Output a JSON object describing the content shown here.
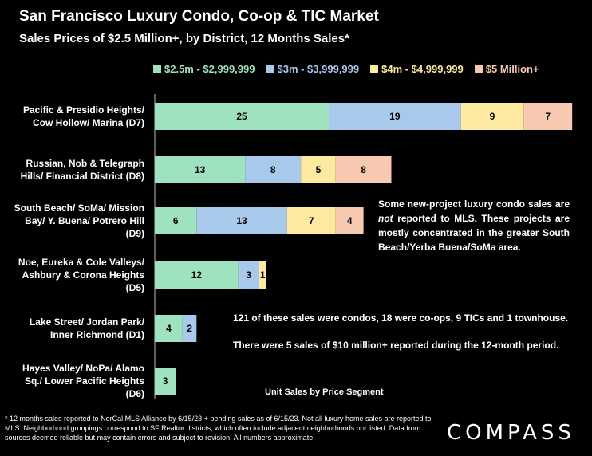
{
  "title": "San Francisco Luxury Condo, Co-op & TIC Market",
  "subtitle": "Sales Prices of $2.5 Million+, by District, 12 Months Sales*",
  "colors": {
    "seg1": "#9fe2bf",
    "seg2": "#a8c8ec",
    "seg3": "#fde9a0",
    "seg4": "#f7c9b0",
    "background": "#000000"
  },
  "chart_data": {
    "type": "bar",
    "orientation": "horizontal",
    "stacked": true,
    "xlabel": "Unit Sales by Price Segment",
    "legend_position": "top",
    "grid": false,
    "categories": [
      [
        "Pacific & Presidio Heights/",
        "Cow Hollow/ Marina (D7)"
      ],
      [
        "Russian, Nob & Telegraph",
        "Hills/ Financial District (D8)"
      ],
      [
        "South Beach/ SoMa/ Mission",
        "Bay/ Y. Buena/ Potrero Hill",
        "(D9)"
      ],
      [
        "Noe, Eureka & Cole Valleys/",
        "Ashbury & Corona Heights",
        "(D5)"
      ],
      [
        "Lake Street/ Jordan Park/",
        "Inner Richmond (D1)"
      ],
      [
        "Hayes Valley/ NoPa/ Alamo",
        "Sq./ Lower Pacific Heights",
        "(D6)"
      ]
    ],
    "series": [
      {
        "name": "$2.5m - $2,999,999",
        "values": [
          25,
          13,
          6,
          12,
          4,
          3
        ]
      },
      {
        "name": "$3m - $3,999,999",
        "values": [
          19,
          8,
          13,
          3,
          2,
          0
        ]
      },
      {
        "name": "$4m - $4,999,999",
        "values": [
          9,
          5,
          7,
          1,
          0,
          0
        ]
      },
      {
        "name": "$5 Million+",
        "values": [
          7,
          8,
          4,
          0,
          0,
          0
        ]
      }
    ]
  },
  "notes": {
    "new_projects": "Some new-project luxury condo sales are ",
    "new_projects_em": "not",
    "new_projects_rest": " reported to MLS. These projects are mostly concentrated in the greater South Beach/Yerba Buena/SoMa area.",
    "breakdown": "121 of these sales were condos, 18 were co-ops, 9 TICs and 1 townhouse.",
    "ten_million": "There were 5 sales of $10 million+ reported during the 12-month period."
  },
  "footnote": "* 12 months sales reported to NorCal MLS Alliance by 6/15/23 + pending sales as of 6/15/23. Not all luxury home sales are reported to MLS. Neighborhood groupings correspond to SF Realtor districts, which often include adjacent neighborhoods not listed. Data from sources deemed reliable but may contain errors and subject to revision. All numbers approximate.",
  "logo": "COMPASS"
}
